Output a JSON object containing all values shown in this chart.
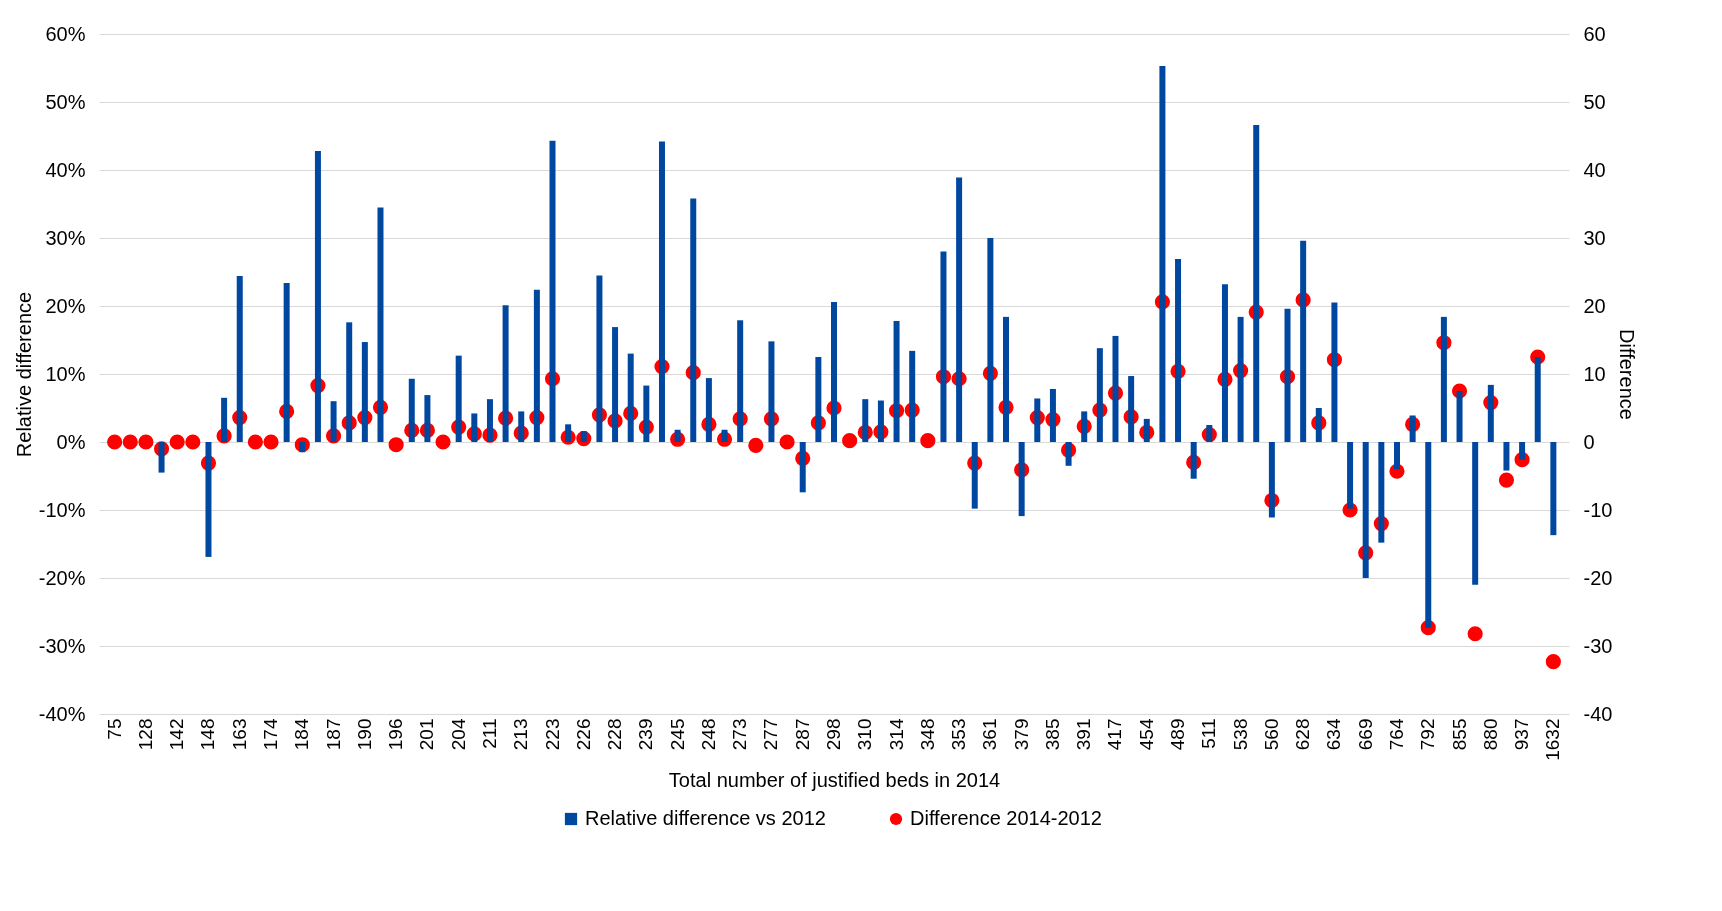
{
  "chart_data": {
    "type": "bar",
    "xlabel": "Total number of justified beds in 2014",
    "ylabel": "Relative difference",
    "y2label": "Difference",
    "categories": [
      "75",
      null,
      "128",
      null,
      "142",
      null,
      "148",
      null,
      "163",
      null,
      "174",
      null,
      "184",
      null,
      "187",
      null,
      "190",
      null,
      "196",
      null,
      "201",
      null,
      "204",
      null,
      "211",
      null,
      "213",
      null,
      "223",
      null,
      "226",
      null,
      "228",
      null,
      "239",
      null,
      "245",
      null,
      "248",
      null,
      "273",
      null,
      "277",
      null,
      "287",
      null,
      "298",
      null,
      "310",
      null,
      "314",
      null,
      "348",
      null,
      "353",
      null,
      "361",
      null,
      "379",
      null,
      "385",
      null,
      "391",
      null,
      "417",
      null,
      "454",
      null,
      "489",
      null,
      "511",
      null,
      "538",
      null,
      "560",
      null,
      "628",
      null,
      "634",
      null,
      "669",
      null,
      "764",
      null,
      "792",
      null,
      "855",
      null,
      "880",
      null,
      "937",
      null,
      "1632"
    ],
    "series": [
      {
        "name": "Relative difference vs 2012",
        "color": "#0047a0",
        "values": [
          0,
          0,
          0,
          -4.5,
          0,
          0,
          -16.9,
          6.5,
          24.4,
          0,
          0,
          23.4,
          -1.5,
          42.8,
          6.0,
          17.6,
          14.7,
          34.5,
          0,
          9.3,
          6.9,
          0,
          12.7,
          4.2,
          6.3,
          20.1,
          4.5,
          22.4,
          44.3,
          2.6,
          1.6,
          24.5,
          16.9,
          13.0,
          8.3,
          44.2,
          1.8,
          35.8,
          9.4,
          1.8,
          17.9,
          0,
          14.8,
          0,
          -7.4,
          12.5,
          20.6,
          0,
          6.3,
          6.1,
          17.8,
          13.4,
          0,
          28.0,
          38.9,
          -9.8,
          30.0,
          18.4,
          -10.9,
          6.4,
          7.8,
          -3.5,
          4.5,
          13.8,
          15.6,
          9.7,
          3.4,
          55.3,
          26.9,
          -5.4,
          2.5,
          23.2,
          18.4,
          46.6,
          -11.1,
          19.6,
          29.6,
          5.0,
          20.5,
          -9.8,
          -20.0,
          -14.8,
          -4.0,
          3.9,
          -27.3,
          18.4,
          7.5,
          -21.0,
          8.4,
          -4.2,
          -2.6,
          12.5,
          -13.7
        ]
      },
      {
        "name": "Difference  2014-2012",
        "type": "scatter",
        "axis": "y2",
        "color": "#ff0000",
        "values": [
          0,
          0,
          0,
          -1.0,
          0,
          0,
          -3.1,
          0.9,
          3.6,
          0,
          0,
          4.5,
          -0.4,
          8.3,
          0.9,
          2.8,
          3.6,
          5.1,
          -0.4,
          1.7,
          1.7,
          0,
          2.2,
          1.2,
          1.0,
          3.5,
          1.3,
          3.6,
          9.3,
          0.7,
          0.5,
          4.0,
          3.1,
          4.2,
          2.2,
          11.1,
          0.4,
          10.2,
          2.6,
          0.4,
          3.4,
          -0.5,
          3.4,
          0,
          -2.4,
          2.8,
          5.0,
          0.2,
          1.4,
          1.5,
          4.6,
          4.7,
          0.2,
          9.6,
          9.3,
          -3.1,
          10.1,
          5.1,
          -4.1,
          3.6,
          3.3,
          -1.2,
          2.3,
          4.7,
          7.2,
          3.7,
          1.4,
          20.6,
          10.4,
          -3.0,
          1.1,
          9.2,
          10.5,
          19.1,
          -8.6,
          9.6,
          20.9,
          2.8,
          12.1,
          -10.0,
          -16.3,
          -12.0,
          -4.3,
          2.6,
          -27.3,
          14.6,
          7.5,
          -28.2,
          5.8,
          -5.6,
          -2.6,
          12.5,
          -32.3
        ]
      }
    ],
    "ylim": [
      -40,
      60
    ],
    "yticks": [
      {
        "value": -40,
        "label": "-40%"
      },
      {
        "value": -30,
        "label": "-30%"
      },
      {
        "value": -20,
        "label": "-20%"
      },
      {
        "value": -10,
        "label": "-10%"
      },
      {
        "value": 0,
        "label": "0%"
      },
      {
        "value": 10,
        "label": "10%"
      },
      {
        "value": 20,
        "label": "20%"
      },
      {
        "value": 30,
        "label": "30%"
      },
      {
        "value": 40,
        "label": "40%"
      },
      {
        "value": 50,
        "label": "50%"
      },
      {
        "value": 60,
        "label": "60%"
      }
    ],
    "y2lim": [
      -40,
      60
    ],
    "y2ticks": [
      -40,
      -30,
      -20,
      -10,
      0,
      10,
      20,
      30,
      40,
      50,
      60
    ],
    "grid": "y",
    "legend": "bottom",
    "marker": "circle"
  }
}
